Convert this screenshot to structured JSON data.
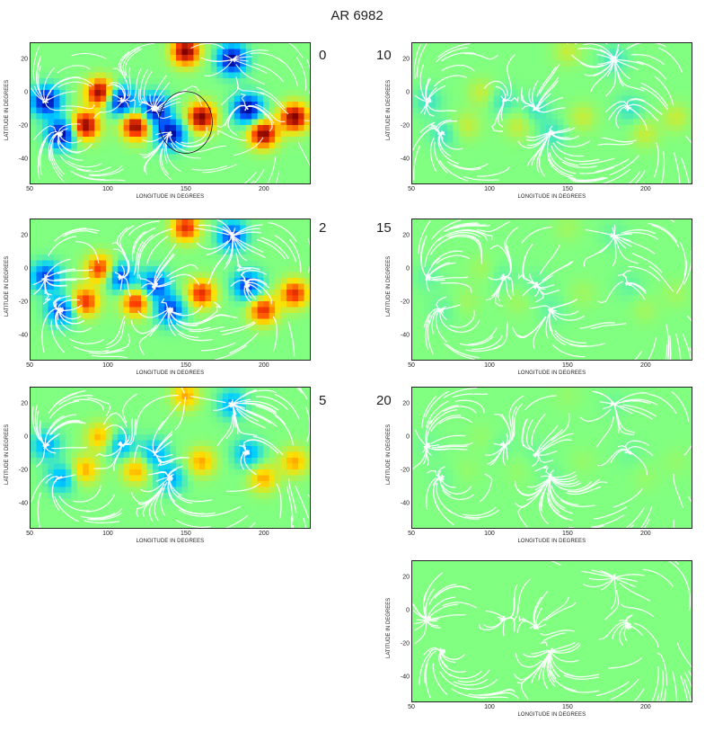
{
  "title": "AR 6982",
  "axis_labels": {
    "longitude": "LONGITUDE IN DEGREES",
    "latitude": "LATITUDE IN DEGREES"
  },
  "colormap": [
    "#00008f",
    "#0050ff",
    "#00d0ff",
    "#80ff80",
    "#ffe000",
    "#ff4000",
    "#800000"
  ],
  "panels": [
    {
      "frame": "0",
      "xticks": [
        "50",
        "100",
        "150",
        "200"
      ],
      "yticks": [
        "20",
        "0",
        "-20",
        "-40"
      ],
      "intensity": 1.0
    },
    {
      "frame": "2",
      "xticks": [
        "50",
        "100",
        "150",
        "200"
      ],
      "yticks": [
        "20",
        "0",
        "-20",
        "-40"
      ],
      "intensity": 0.75
    },
    {
      "frame": "5",
      "xticks": [
        "50",
        "100",
        "150",
        "200"
      ],
      "yticks": [
        "20",
        "0",
        "-20",
        "-40"
      ],
      "intensity": 0.45
    },
    {
      "frame": "10",
      "xticks": [
        "50",
        "100",
        "150",
        "200"
      ],
      "yticks": [
        "20",
        "0",
        "-20",
        "-40"
      ],
      "intensity": 0.18
    },
    {
      "frame": "15",
      "xticks": [
        "50",
        "100",
        "150",
        "200"
      ],
      "yticks": [
        "20",
        "0",
        "-20",
        "-40"
      ],
      "intensity": 0.08
    },
    {
      "frame": "20",
      "xticks": [
        "50",
        "100",
        "150",
        "200"
      ],
      "yticks": [
        "20",
        "0",
        "-20",
        "-40"
      ],
      "intensity": 0.05
    },
    {
      "frame": "",
      "xticks": [
        "50",
        "100",
        "150",
        "200"
      ],
      "yticks": [
        "20",
        "0",
        "-20",
        "-40"
      ],
      "intensity": 0.0
    }
  ],
  "polarity_regions": [
    {
      "lon": 60,
      "lat": -5,
      "sign": -1
    },
    {
      "lon": 70,
      "lat": -25,
      "sign": -1
    },
    {
      "lon": 85,
      "lat": -20,
      "sign": 1
    },
    {
      "lon": 95,
      "lat": 0,
      "sign": 1
    },
    {
      "lon": 108,
      "lat": -5,
      "sign": -1
    },
    {
      "lon": 118,
      "lat": -20,
      "sign": 1
    },
    {
      "lon": 130,
      "lat": -10,
      "sign": -1
    },
    {
      "lon": 140,
      "lat": -25,
      "sign": -1
    },
    {
      "lon": 150,
      "lat": 25,
      "sign": 1
    },
    {
      "lon": 160,
      "lat": -15,
      "sign": 1
    },
    {
      "lon": 180,
      "lat": 20,
      "sign": -1
    },
    {
      "lon": 190,
      "lat": -10,
      "sign": -1
    },
    {
      "lon": 200,
      "lat": -25,
      "sign": 1
    },
    {
      "lon": 220,
      "lat": -15,
      "sign": 1
    }
  ]
}
